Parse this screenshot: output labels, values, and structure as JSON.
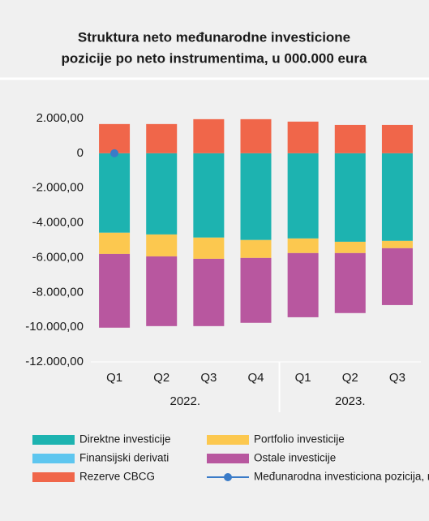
{
  "chart_data": {
    "type": "bar",
    "stacked": true,
    "title": [
      "Struktura neto međunarodne investicione",
      "pozicije po neto instrumentima, u 000.000 eura"
    ],
    "category_groups": [
      {
        "label": "2022.",
        "categories": [
          "Q1",
          "Q2",
          "Q3",
          "Q4"
        ]
      },
      {
        "label": "2023.",
        "categories": [
          "Q1",
          "Q2",
          "Q3"
        ]
      }
    ],
    "series": [
      {
        "name": "Direktne investicije",
        "color": "#1db3b0",
        "values": [
          -4570,
          -4670,
          -4850,
          -4990,
          -4900,
          -5090,
          -5040
        ]
      },
      {
        "name": "Portfolio investicije",
        "color": "#fcc84f",
        "values": [
          -1220,
          -1260,
          -1220,
          -1030,
          -840,
          -650,
          -420
        ]
      },
      {
        "name": "Finansijski derivati",
        "color": "#5ec6ef",
        "values": [
          0,
          0,
          0,
          0,
          0,
          0,
          0
        ]
      },
      {
        "name": "Ostale investicije",
        "color": "#b8579f",
        "values": [
          -4240,
          -4010,
          -3870,
          -3730,
          -3690,
          -3450,
          -3270
        ]
      },
      {
        "name": "Rezerve CBCG",
        "color": "#f0664a",
        "values": [
          1680,
          1680,
          1960,
          1960,
          1820,
          1630,
          1630
        ]
      },
      {
        "name": "Međunarodna investiciona pozicija, neto",
        "type": "line",
        "color": "#3a7bc8",
        "values": [
          0,
          null,
          null,
          null,
          null,
          null,
          null
        ]
      }
    ],
    "ylim": [
      -12000,
      2000
    ],
    "yticks": [
      {
        "value": 2000,
        "label": "2.000,00"
      },
      0,
      {
        "value": -2000,
        "label": "-2.000,00"
      },
      {
        "value": -4000,
        "label": "-4.000,00"
      },
      {
        "value": -6000,
        "label": "-6.000,00"
      },
      {
        "value": -8000,
        "label": "-8.000,00"
      },
      {
        "value": -10000,
        "label": "-10.000,00"
      },
      {
        "value": -12000,
        "label": "-12.000,00"
      }
    ]
  }
}
